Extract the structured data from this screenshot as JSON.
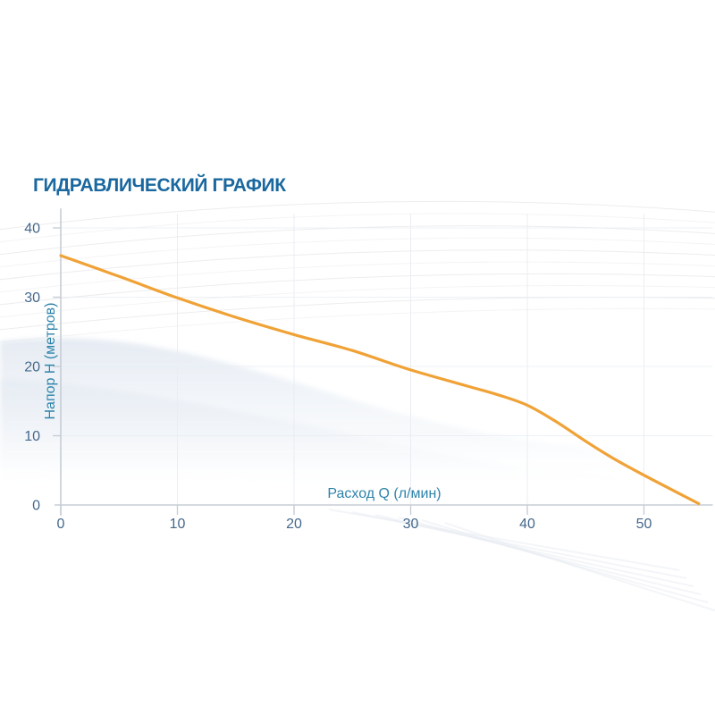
{
  "page_title": "ГИДРАВЛИЧЕСКИЙ ГРАФИК",
  "colors": {
    "title_text": "#1A689F",
    "axis_caption_text": "#2D83AA",
    "tick_label_text": "#45688C",
    "curve": "#F0A236",
    "axis_line": "#C7CDD5",
    "gridline": "#E9EEF4",
    "background": "#FFFFFF",
    "decor_wave": "#D6E0EC"
  },
  "chart_data": {
    "type": "line",
    "title": "ГИДРАВЛИЧЕСКИЙ ГРАФИК",
    "xlabel": "Расход Q (л/мин)",
    "ylabel": "Напор H (метров)",
    "x_ticks": [
      0,
      10,
      20,
      30,
      40,
      50
    ],
    "y_ticks": [
      0,
      10,
      20,
      30,
      40
    ],
    "xlim": [
      0,
      55.9
    ],
    "ylim": [
      0,
      42.8
    ],
    "grid": true,
    "legend": "none",
    "series": [
      {
        "color": "#F0A236",
        "x": [
          0,
          5,
          10,
          15,
          20,
          25,
          30,
          35,
          37.5,
          40,
          42.5,
          45,
          47.5,
          50,
          52.5,
          54.7
        ],
        "y": [
          36,
          33,
          29.9,
          27.1,
          24.6,
          22.3,
          19.5,
          17.1,
          15.9,
          14.4,
          12.0,
          9.2,
          6.6,
          4.3,
          2.1,
          0.2
        ]
      }
    ]
  }
}
